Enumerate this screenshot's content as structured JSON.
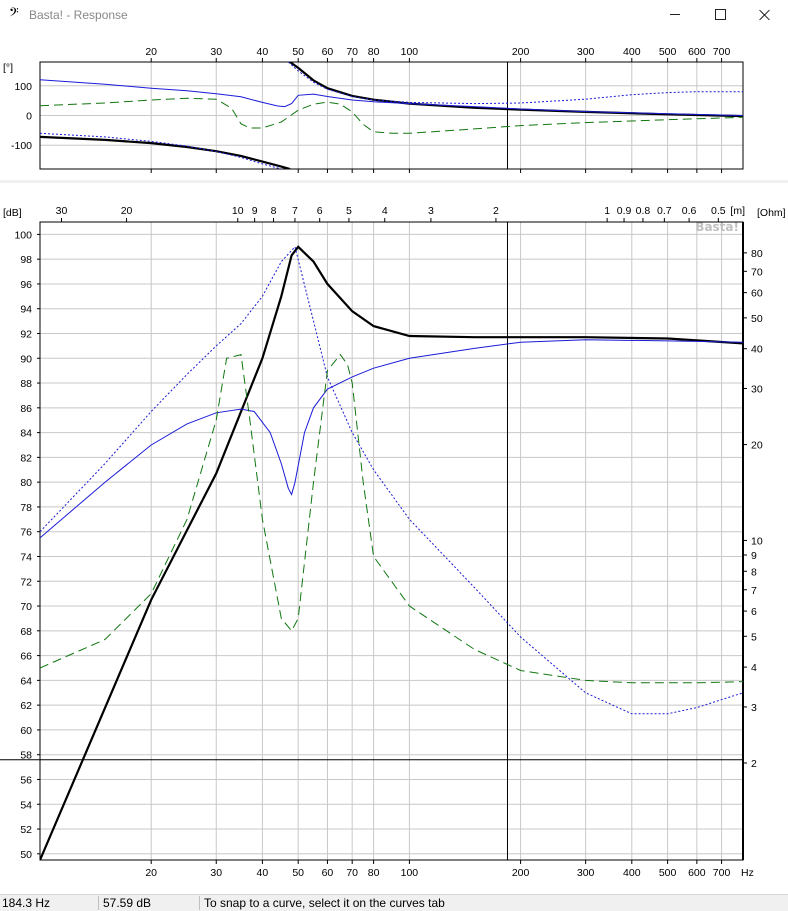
{
  "window": {
    "title": "Basta! - Response"
  },
  "status": {
    "frequency": "184.3 Hz",
    "level": "57.59 dB",
    "hint": "To snap to a curve, select it on the curves tab"
  },
  "chart_data": [
    {
      "type": "line",
      "panel": "phase",
      "ylabel": "[°]",
      "xscale": "log",
      "xlim": [
        10,
        800
      ],
      "ylim": [
        -180,
        180
      ],
      "xticks": [
        20,
        30,
        40,
        50,
        60,
        70,
        80,
        100,
        200,
        300,
        400,
        500,
        600,
        700
      ],
      "yticks": [
        100,
        0,
        -100
      ],
      "cursor_x": 184.3,
      "series": [
        {
          "style": "thick-black",
          "x": [
            10,
            15,
            20,
            25,
            30,
            35,
            40,
            45,
            47.5
          ],
          "y": [
            -72,
            -82,
            -93,
            -106,
            -120,
            -136,
            -155,
            -172,
            -180
          ]
        },
        {
          "style": "thick-black",
          "x": [
            47.5,
            50,
            55,
            60,
            70,
            80,
            100,
            150,
            200,
            300,
            500,
            800
          ],
          "y": [
            180,
            160,
            118,
            92,
            66,
            53,
            40,
            26,
            20,
            12,
            4,
            -2
          ]
        },
        {
          "style": "thin-dotted-blue",
          "x": [
            10,
            15,
            20,
            25,
            30,
            35,
            40,
            45
          ],
          "y": [
            -60,
            -72,
            -87,
            -103,
            -121,
            -141,
            -163,
            -180
          ]
        },
        {
          "style": "thin-dotted-blue",
          "x": [
            47,
            50,
            55,
            60,
            70,
            80,
            100,
            150,
            200,
            300,
            400,
            500,
            600,
            800
          ],
          "y": [
            180,
            150,
            112,
            88,
            64,
            52,
            44,
            40,
            42,
            55,
            70,
            77,
            80,
            80
          ]
        },
        {
          "style": "thin-blue",
          "x": [
            10,
            15,
            20,
            25,
            30,
            35,
            40,
            44,
            46,
            48,
            50,
            55,
            60,
            70,
            80,
            100,
            150,
            200,
            300,
            500,
            800
          ],
          "y": [
            120,
            105,
            92,
            83,
            73,
            63,
            44,
            32,
            30,
            40,
            68,
            72,
            64,
            52,
            46,
            40,
            30,
            22,
            13,
            6,
            0
          ]
        },
        {
          "style": "dashed-green",
          "x": [
            10,
            15,
            20,
            25,
            30,
            33,
            35,
            37,
            40,
            45,
            50,
            55,
            60,
            65,
            70,
            75,
            80,
            90,
            100,
            150,
            200,
            300,
            500,
            800
          ],
          "y": [
            33,
            42,
            52,
            58,
            55,
            25,
            -28,
            -42,
            -42,
            -22,
            18,
            38,
            45,
            38,
            12,
            -30,
            -55,
            -60,
            -60,
            -45,
            -34,
            -24,
            -14,
            -6
          ]
        }
      ]
    },
    {
      "type": "line",
      "panel": "magnitude",
      "ylabel": "[dB]",
      "y2label": "[Ohm]",
      "xunit": "Hz",
      "top_axis_unit": "[m]",
      "watermark": "Basta!",
      "xscale": "log",
      "xlim": [
        10,
        800
      ],
      "ylim": [
        49.5,
        101
      ],
      "xticks": [
        20,
        30,
        40,
        50,
        60,
        70,
        80,
        100,
        200,
        300,
        400,
        500,
        600,
        700
      ],
      "yticks": [
        50,
        52,
        54,
        56,
        58,
        60,
        62,
        64,
        66,
        68,
        70,
        72,
        74,
        76,
        78,
        80,
        82,
        84,
        86,
        88,
        90,
        92,
        94,
        96,
        98,
        100
      ],
      "y2ticks": [
        2,
        3,
        4,
        5,
        6,
        7,
        8,
        9,
        10,
        20,
        30,
        40,
        50,
        60,
        70,
        80
      ],
      "top_ticks_m": [
        30,
        20,
        10,
        9,
        8,
        7,
        6,
        5,
        4,
        3,
        2,
        1,
        0.9,
        0.8,
        0.7,
        0.6,
        0.5
      ],
      "cursor": {
        "x": 184.3,
        "y": 57.59
      },
      "series": [
        {
          "style": "thick-black",
          "x": [
            10,
            20,
            30,
            40,
            45,
            48,
            50,
            55,
            60,
            70,
            80,
            100,
            150,
            200,
            300,
            500,
            800
          ],
          "y": [
            49.5,
            70.5,
            80.7,
            90,
            95,
            98.3,
            99,
            97.8,
            96,
            93.8,
            92.6,
            91.8,
            91.7,
            91.7,
            91.7,
            91.6,
            91.2
          ]
        },
        {
          "style": "thin-dotted-blue",
          "x": [
            10,
            15,
            20,
            25,
            30,
            35,
            40,
            45,
            49,
            55,
            60,
            70,
            80,
            100,
            150,
            200,
            300,
            400,
            500,
            600,
            800
          ],
          "y": [
            76,
            81.5,
            85.7,
            88.7,
            91,
            92.8,
            95,
            97.8,
            99,
            93,
            88.5,
            84,
            81,
            77,
            71.5,
            67.5,
            63,
            61.3,
            61.3,
            61.8,
            63
          ]
        },
        {
          "style": "thin-blue",
          "x": [
            10,
            15,
            20,
            25,
            30,
            35,
            38,
            42,
            45,
            47,
            48,
            49,
            52,
            55,
            60,
            70,
            80,
            100,
            150,
            200,
            300,
            500,
            800
          ],
          "y": [
            75.5,
            80,
            83,
            84.7,
            85.6,
            85.9,
            85.7,
            84,
            81.5,
            79.5,
            79,
            80,
            84,
            86,
            87.5,
            88.5,
            89.2,
            90,
            90.8,
            91.3,
            91.5,
            91.4,
            91.3
          ]
        },
        {
          "style": "dashed-green",
          "x": [
            10,
            15,
            20,
            25,
            30,
            32,
            35,
            37,
            40,
            45,
            48,
            50,
            55,
            60,
            65,
            68,
            70,
            75,
            80,
            100,
            150,
            200,
            300,
            400,
            500,
            600,
            800
          ],
          "y": [
            65,
            67.3,
            71,
            77,
            85,
            90,
            90.3,
            85,
            77,
            69,
            68,
            69,
            80,
            89,
            90.3,
            89.5,
            88,
            80,
            74,
            70,
            66.5,
            64.8,
            64,
            63.8,
            63.8,
            63.8,
            63.9
          ]
        }
      ]
    }
  ]
}
